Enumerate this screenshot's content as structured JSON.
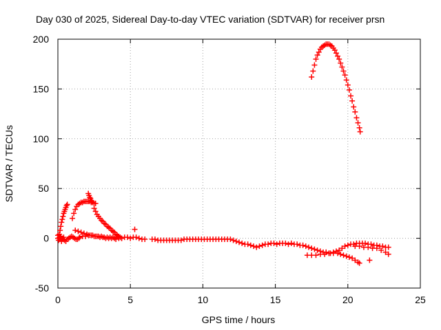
{
  "chart_data": {
    "type": "scatter",
    "title": "Day 030 of 2025, Sidereal Day-to-day VTEC variation (SDTVAR) for receiver prsn",
    "xlabel": "GPS time / hours",
    "ylabel": "SDTVAR / TECUs",
    "xlim": [
      0,
      25
    ],
    "ylim": [
      -50,
      200
    ],
    "x_ticks": [
      0,
      5,
      10,
      15,
      20,
      25
    ],
    "y_ticks": [
      -50,
      0,
      50,
      100,
      150,
      200
    ],
    "grid": true,
    "legend": "none",
    "series": [
      {
        "name": "SDTVAR",
        "marker": "+",
        "color": "#ff0000",
        "points": [
          [
            0.0,
            3
          ],
          [
            0.05,
            -2
          ],
          [
            0.1,
            1
          ],
          [
            0.15,
            -1
          ],
          [
            0.2,
            2
          ],
          [
            0.25,
            -3
          ],
          [
            0.3,
            0
          ],
          [
            0.35,
            -1
          ],
          [
            0.4,
            1
          ],
          [
            0.45,
            -2
          ],
          [
            0.0,
            0
          ],
          [
            0.1,
            4
          ],
          [
            0.15,
            8
          ],
          [
            0.2,
            12
          ],
          [
            0.25,
            16
          ],
          [
            0.3,
            19
          ],
          [
            0.35,
            22
          ],
          [
            0.4,
            25
          ],
          [
            0.45,
            27
          ],
          [
            0.5,
            29
          ],
          [
            0.55,
            31
          ],
          [
            0.6,
            33
          ],
          [
            0.65,
            34
          ],
          [
            0.55,
            -3
          ],
          [
            0.65,
            -1
          ],
          [
            0.75,
            0
          ],
          [
            0.85,
            1
          ],
          [
            0.95,
            2
          ],
          [
            1.05,
            1
          ],
          [
            1.15,
            0
          ],
          [
            1.25,
            -1
          ],
          [
            1.35,
            -1
          ],
          [
            1.45,
            0
          ],
          [
            1.0,
            20
          ],
          [
            1.1,
            25
          ],
          [
            1.2,
            29
          ],
          [
            1.3,
            32
          ],
          [
            1.4,
            34
          ],
          [
            1.5,
            35
          ],
          [
            1.6,
            36
          ],
          [
            1.7,
            36
          ],
          [
            1.8,
            37
          ],
          [
            1.9,
            37
          ],
          [
            2.0,
            37
          ],
          [
            2.1,
            37
          ],
          [
            2.2,
            37
          ],
          [
            2.3,
            36
          ],
          [
            2.4,
            36
          ],
          [
            2.5,
            35
          ],
          [
            2.6,
            35
          ],
          [
            1.2,
            8
          ],
          [
            1.4,
            7
          ],
          [
            1.6,
            6
          ],
          [
            1.8,
            5
          ],
          [
            2.0,
            4
          ],
          [
            2.2,
            3
          ],
          [
            2.4,
            3
          ],
          [
            2.6,
            2
          ],
          [
            2.8,
            2
          ],
          [
            3.0,
            2
          ],
          [
            3.2,
            1
          ],
          [
            3.4,
            1
          ],
          [
            3.6,
            1
          ],
          [
            3.8,
            1
          ],
          [
            4.0,
            1
          ],
          [
            1.5,
            1
          ],
          [
            1.7,
            2
          ],
          [
            1.9,
            2
          ],
          [
            2.1,
            3
          ],
          [
            2.3,
            3
          ],
          [
            2.5,
            2
          ],
          [
            2.7,
            2
          ],
          [
            2.9,
            1
          ],
          [
            3.1,
            1
          ],
          [
            3.3,
            0
          ],
          [
            3.5,
            0
          ],
          [
            3.7,
            0
          ],
          [
            3.9,
            0
          ],
          [
            2.1,
            45
          ],
          [
            2.15,
            43
          ],
          [
            2.2,
            41
          ],
          [
            2.25,
            40
          ],
          [
            2.3,
            38
          ],
          [
            2.35,
            37
          ],
          [
            2.5,
            30
          ],
          [
            2.6,
            27
          ],
          [
            2.7,
            24
          ],
          [
            2.8,
            22
          ],
          [
            2.9,
            20
          ],
          [
            3.0,
            18
          ],
          [
            3.1,
            17
          ],
          [
            3.2,
            15
          ],
          [
            3.3,
            14
          ],
          [
            3.4,
            12
          ],
          [
            3.5,
            11
          ],
          [
            3.6,
            10
          ],
          [
            3.7,
            8
          ],
          [
            3.8,
            7
          ],
          [
            3.9,
            6
          ],
          [
            4.0,
            4
          ],
          [
            4.1,
            3
          ],
          [
            4.2,
            2
          ],
          [
            4.3,
            1
          ],
          [
            4.4,
            0
          ],
          [
            4.0,
            -1
          ],
          [
            4.2,
            0
          ],
          [
            4.4,
            0
          ],
          [
            4.6,
            1
          ],
          [
            4.8,
            1
          ],
          [
            5.0,
            0
          ],
          [
            5.2,
            1
          ],
          [
            5.4,
            1
          ],
          [
            5.6,
            0
          ],
          [
            5.8,
            -1
          ],
          [
            6.0,
            -1
          ],
          [
            5.3,
            9
          ],
          [
            6.5,
            -1
          ],
          [
            6.7,
            -1
          ],
          [
            6.9,
            -2
          ],
          [
            7.1,
            -2
          ],
          [
            7.3,
            -2
          ],
          [
            7.5,
            -2
          ],
          [
            7.7,
            -2
          ],
          [
            7.9,
            -2
          ],
          [
            8.1,
            -2
          ],
          [
            8.3,
            -2
          ],
          [
            8.5,
            -2
          ],
          [
            8.7,
            -1
          ],
          [
            8.9,
            -1
          ],
          [
            9.1,
            -1
          ],
          [
            9.3,
            -1
          ],
          [
            9.5,
            -1
          ],
          [
            9.7,
            -1
          ],
          [
            9.9,
            -1
          ],
          [
            10.1,
            -1
          ],
          [
            10.3,
            -1
          ],
          [
            10.5,
            -1
          ],
          [
            10.7,
            -1
          ],
          [
            10.9,
            -1
          ],
          [
            11.1,
            -1
          ],
          [
            11.3,
            -1
          ],
          [
            11.5,
            -1
          ],
          [
            11.7,
            -1
          ],
          [
            11.9,
            -1
          ],
          [
            12.1,
            -2
          ],
          [
            12.3,
            -3
          ],
          [
            12.5,
            -4
          ],
          [
            12.7,
            -5
          ],
          [
            12.9,
            -6
          ],
          [
            13.1,
            -6
          ],
          [
            13.3,
            -7
          ],
          [
            13.5,
            -8
          ],
          [
            13.7,
            -9
          ],
          [
            13.9,
            -8
          ],
          [
            14.1,
            -7
          ],
          [
            14.3,
            -6
          ],
          [
            14.5,
            -6
          ],
          [
            14.7,
            -5
          ],
          [
            14.9,
            -5
          ],
          [
            15.1,
            -6
          ],
          [
            15.3,
            -5
          ],
          [
            15.5,
            -5
          ],
          [
            15.7,
            -5
          ],
          [
            15.9,
            -6
          ],
          [
            16.1,
            -5
          ],
          [
            16.3,
            -6
          ],
          [
            16.5,
            -6
          ],
          [
            16.7,
            -7
          ],
          [
            16.9,
            -7
          ],
          [
            17.1,
            -8
          ],
          [
            17.3,
            -9
          ],
          [
            17.5,
            -10
          ],
          [
            17.7,
            -11
          ],
          [
            17.9,
            -12
          ],
          [
            18.1,
            -13
          ],
          [
            18.3,
            -14
          ],
          [
            18.5,
            -14
          ],
          [
            18.7,
            -15
          ],
          [
            17.5,
            162
          ],
          [
            17.6,
            168
          ],
          [
            17.7,
            174
          ],
          [
            17.8,
            180
          ],
          [
            17.9,
            184
          ],
          [
            18.0,
            187
          ],
          [
            18.1,
            190
          ],
          [
            18.2,
            192
          ],
          [
            18.3,
            193
          ],
          [
            18.4,
            194
          ],
          [
            18.5,
            195
          ],
          [
            18.6,
            195
          ],
          [
            18.7,
            195
          ],
          [
            18.8,
            194
          ],
          [
            18.9,
            193
          ],
          [
            19.0,
            191
          ],
          [
            19.1,
            189
          ],
          [
            19.2,
            186
          ],
          [
            19.3,
            183
          ],
          [
            19.4,
            180
          ],
          [
            19.5,
            176
          ],
          [
            19.6,
            172
          ],
          [
            19.7,
            168
          ],
          [
            19.8,
            164
          ],
          [
            19.9,
            159
          ],
          [
            20.0,
            154
          ],
          [
            20.1,
            149
          ],
          [
            20.2,
            143
          ],
          [
            20.3,
            138
          ],
          [
            20.4,
            132
          ],
          [
            20.5,
            127
          ],
          [
            20.6,
            121
          ],
          [
            20.7,
            116
          ],
          [
            20.8,
            111
          ],
          [
            20.85,
            107
          ],
          [
            17.2,
            -17
          ],
          [
            17.5,
            -17
          ],
          [
            17.8,
            -17
          ],
          [
            18.1,
            -16
          ],
          [
            18.4,
            -16
          ],
          [
            18.7,
            -15
          ],
          [
            19.0,
            -15
          ],
          [
            19.3,
            -15
          ],
          [
            19.5,
            -16
          ],
          [
            19.7,
            -17
          ],
          [
            19.9,
            -18
          ],
          [
            20.1,
            -19
          ],
          [
            20.3,
            -20
          ],
          [
            20.5,
            -22
          ],
          [
            20.7,
            -24
          ],
          [
            20.8,
            -25
          ],
          [
            18.5,
            -14
          ],
          [
            18.8,
            -15
          ],
          [
            19.0,
            -14
          ],
          [
            19.2,
            -13
          ],
          [
            19.4,
            -12
          ],
          [
            19.6,
            -10
          ],
          [
            19.8,
            -8
          ],
          [
            20.0,
            -7
          ],
          [
            20.2,
            -6
          ],
          [
            20.4,
            -6
          ],
          [
            20.6,
            -5
          ],
          [
            20.8,
            -5
          ],
          [
            21.0,
            -5
          ],
          [
            21.2,
            -5
          ],
          [
            21.4,
            -6
          ],
          [
            21.6,
            -6
          ],
          [
            21.8,
            -7
          ],
          [
            22.0,
            -7
          ],
          [
            22.2,
            -8
          ],
          [
            22.4,
            -8
          ],
          [
            22.6,
            -9
          ],
          [
            22.8,
            -9
          ],
          [
            20.5,
            -8
          ],
          [
            20.8,
            -8
          ],
          [
            21.1,
            -9
          ],
          [
            21.4,
            -9
          ],
          [
            21.7,
            -10
          ],
          [
            22.0,
            -10
          ],
          [
            22.3,
            -12
          ],
          [
            22.6,
            -14
          ],
          [
            22.8,
            -16
          ],
          [
            21.5,
            -22
          ]
        ]
      }
    ]
  }
}
